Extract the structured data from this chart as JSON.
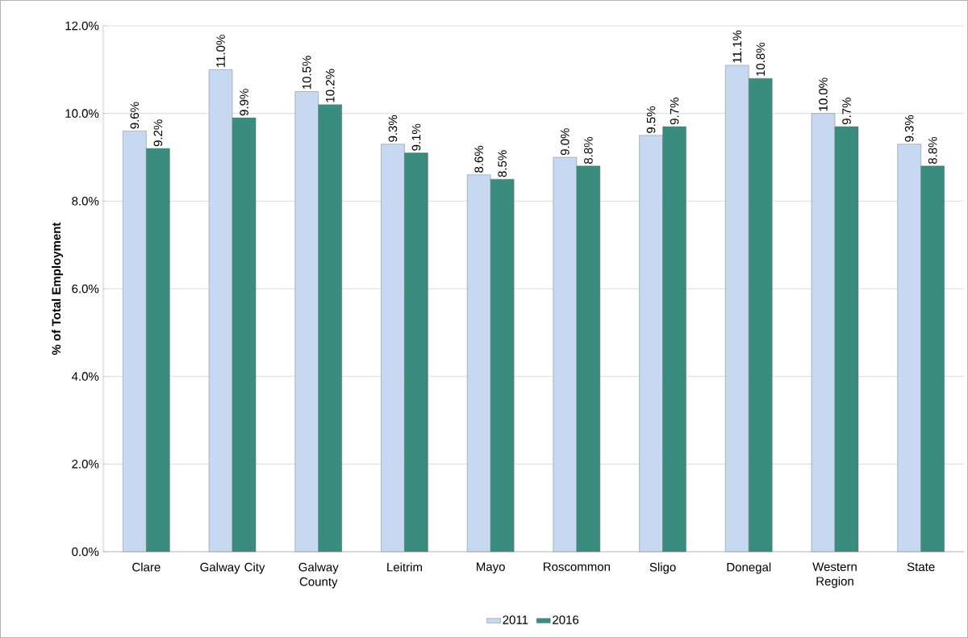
{
  "chart_data": {
    "type": "bar",
    "ylabel": "% of Total Employment",
    "categories": [
      "Clare",
      "Galway City",
      "Galway County",
      "Leitrim",
      "Mayo",
      "Roscommon",
      "Sligo",
      "Donegal",
      "Western Region",
      "State"
    ],
    "series": [
      {
        "name": "2011",
        "color": "#c6d9f1",
        "values": [
          9.6,
          11.0,
          10.5,
          9.3,
          8.6,
          9.0,
          9.5,
          11.1,
          10.0,
          9.3
        ],
        "value_labels": [
          "9.6%",
          "11.0%",
          "10.5%",
          "9.3%",
          "8.6%",
          "9.0%",
          "9.5%",
          "11.1%",
          "10.0%",
          "9.3%"
        ]
      },
      {
        "name": "2016",
        "color": "#3a8c7e",
        "values": [
          9.2,
          9.9,
          10.2,
          9.1,
          8.5,
          8.8,
          9.7,
          10.8,
          9.7,
          8.8
        ],
        "value_labels": [
          "9.2%",
          "9.9%",
          "10.2%",
          "9.1%",
          "8.5%",
          "8.8%",
          "9.7%",
          "10.8%",
          "9.7%",
          "8.8%"
        ]
      }
    ],
    "ylim": [
      0,
      12
    ],
    "yticks": [
      {
        "value": 0,
        "label": "0.0%"
      },
      {
        "value": 2,
        "label": "2.0%"
      },
      {
        "value": 4,
        "label": "4.0%"
      },
      {
        "value": 6,
        "label": "6.0%"
      },
      {
        "value": 8,
        "label": "8.0%"
      },
      {
        "value": 10,
        "label": "10.0%"
      },
      {
        "value": 12,
        "label": "12.0%"
      }
    ],
    "grid": "y",
    "legend": "bottom"
  }
}
